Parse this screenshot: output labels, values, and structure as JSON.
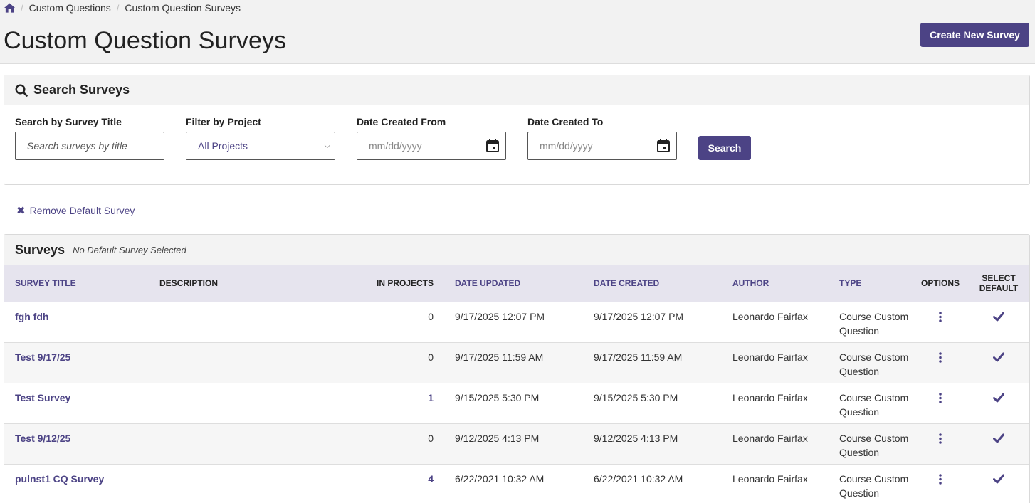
{
  "breadcrumb": {
    "items": [
      "Custom Questions",
      "Custom Question Surveys"
    ]
  },
  "page": {
    "title": "Custom Question Surveys",
    "create_label": "Create New Survey"
  },
  "search": {
    "heading": "Search Surveys",
    "title_label": "Search by Survey Title",
    "title_placeholder": "Search surveys by title",
    "project_label": "Filter by Project",
    "project_value": "All Projects",
    "from_label": "Date Created From",
    "from_placeholder": "mm/dd/yyyy",
    "to_label": "Date Created To",
    "to_placeholder": "mm/dd/yyyy",
    "button": "Search"
  },
  "remove_default": "Remove Default Survey",
  "surveys": {
    "heading": "Surveys",
    "subheading": "No Default Survey Selected",
    "columns": [
      "SURVEY TITLE",
      "DESCRIPTION",
      "IN PROJECTS",
      "DATE UPDATED",
      "DATE CREATED",
      "AUTHOR",
      "TYPE",
      "OPTIONS",
      "SELECT DEFAULT"
    ],
    "rows": [
      {
        "title": "fgh fdh",
        "description": "",
        "projects": "0",
        "updated": "9/17/2025 12:07 PM",
        "created": "9/17/2025 12:07 PM",
        "author": "Leonardo Fairfax",
        "type": "Course Custom Question"
      },
      {
        "title": "Test 9/17/25",
        "description": "",
        "projects": "0",
        "updated": "9/17/2025 11:59 AM",
        "created": "9/17/2025 11:59 AM",
        "author": "Leonardo Fairfax",
        "type": "Course Custom Question"
      },
      {
        "title": "Test Survey",
        "description": "",
        "projects": "1",
        "updated": "9/15/2025 5:30 PM",
        "created": "9/15/2025 5:30 PM",
        "author": "Leonardo Fairfax",
        "type": "Course Custom Question"
      },
      {
        "title": "Test 9/12/25",
        "description": "",
        "projects": "0",
        "updated": "9/12/2025 4:13 PM",
        "created": "9/12/2025 4:13 PM",
        "author": "Leonardo Fairfax",
        "type": "Course Custom Question"
      },
      {
        "title": "pulnst1 CQ Survey",
        "description": "",
        "projects": "4",
        "updated": "6/22/2021 10:32 AM",
        "created": "6/22/2021 10:32 AM",
        "author": "Leonardo Fairfax",
        "type": "Course Custom Question"
      }
    ]
  },
  "colors": {
    "accent": "#4c4385",
    "header_bg": "#f2f2f2",
    "table_head_bg": "#e6e4ee"
  }
}
